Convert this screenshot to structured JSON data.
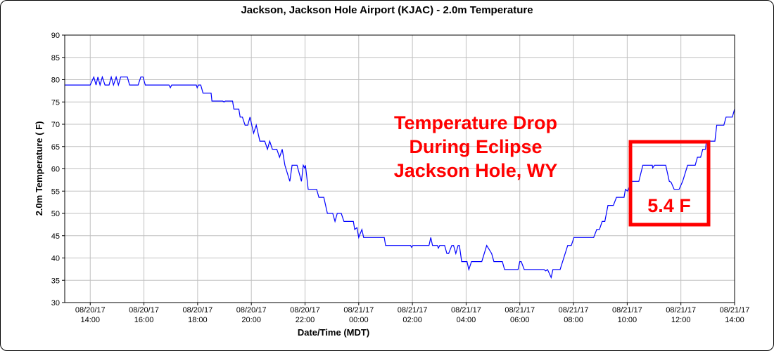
{
  "chart_data": {
    "type": "line",
    "title": "Jackson, Jackson Hole Airport (KJAC) - 2.0m Temperature",
    "xlabel": "Date/Time (MDT)",
    "ylabel": "2.0m Temperature ( F)",
    "ylim": [
      30,
      90
    ],
    "yticks": [
      30,
      35,
      40,
      45,
      50,
      55,
      60,
      65,
      70,
      75,
      80,
      85,
      90
    ],
    "xlim": [
      "08/20/17 13:03",
      "08/21/17 14:00"
    ],
    "xticks": [
      {
        "date": "08/20/17",
        "time": "14:00"
      },
      {
        "date": "08/20/17",
        "time": "16:00"
      },
      {
        "date": "08/20/17",
        "time": "18:00"
      },
      {
        "date": "08/20/17",
        "time": "20:00"
      },
      {
        "date": "08/20/17",
        "time": "22:00"
      },
      {
        "date": "08/21/17",
        "time": "00:00"
      },
      {
        "date": "08/21/17",
        "time": "02:00"
      },
      {
        "date": "08/21/17",
        "time": "04:00"
      },
      {
        "date": "08/21/17",
        "time": "06:00"
      },
      {
        "date": "08/21/17",
        "time": "08:00"
      },
      {
        "date": "08/21/17",
        "time": "10:00"
      },
      {
        "date": "08/21/17",
        "time": "12:00"
      },
      {
        "date": "08/21/17",
        "time": "14:00"
      }
    ],
    "grid": true,
    "line_color": "#0000ff",
    "grid_color": "#c0c0c0",
    "annotation_color": "#ff0000",
    "annotations": {
      "lines": [
        "Temperature Drop",
        "During Eclipse",
        "Jackson Hole, WY"
      ],
      "box_label": "5.4 F"
    },
    "points": [
      [
        "08/20/17 13:03",
        78.8
      ],
      [
        "08/20/17 14:00",
        78.8
      ],
      [
        "08/20/17 14:08",
        80.6
      ],
      [
        "08/20/17 14:13",
        78.8
      ],
      [
        "08/20/17 14:17",
        80.6
      ],
      [
        "08/20/17 14:22",
        78.8
      ],
      [
        "08/20/17 14:27",
        80.6
      ],
      [
        "08/20/17 14:33",
        78.8
      ],
      [
        "08/20/17 14:42",
        78.8
      ],
      [
        "08/20/17 14:47",
        80.6
      ],
      [
        "08/20/17 14:52",
        78.8
      ],
      [
        "08/20/17 14:58",
        80.6
      ],
      [
        "08/20/17 15:03",
        78.8
      ],
      [
        "08/20/17 15:08",
        80.6
      ],
      [
        "08/20/17 15:23",
        80.6
      ],
      [
        "08/20/17 15:28",
        78.8
      ],
      [
        "08/20/17 15:47",
        78.8
      ],
      [
        "08/20/17 15:53",
        80.6
      ],
      [
        "08/20/17 15:58",
        80.6
      ],
      [
        "08/20/17 16:03",
        78.8
      ],
      [
        "08/20/17 16:56",
        78.8
      ],
      [
        "08/20/17 16:59",
        78.2
      ],
      [
        "08/20/17 17:02",
        78.8
      ],
      [
        "08/20/17 17:57",
        78.8
      ],
      [
        "08/20/17 17:59",
        78.2
      ],
      [
        "08/20/17 18:02",
        78.8
      ],
      [
        "08/20/17 18:07",
        78.8
      ],
      [
        "08/20/17 18:12",
        77.0
      ],
      [
        "08/20/17 18:30",
        77.0
      ],
      [
        "08/20/17 18:32",
        75.2
      ],
      [
        "08/20/17 18:56",
        75.2
      ],
      [
        "08/20/17 18:59",
        75.0
      ],
      [
        "08/20/17 19:02",
        75.2
      ],
      [
        "08/20/17 19:18",
        75.2
      ],
      [
        "08/20/17 19:21",
        73.4
      ],
      [
        "08/20/17 19:32",
        73.4
      ],
      [
        "08/20/17 19:35",
        71.6
      ],
      [
        "08/20/17 19:40",
        71.6
      ],
      [
        "08/20/17 19:46",
        69.8
      ],
      [
        "08/20/17 19:52",
        69.8
      ],
      [
        "08/20/17 19:57",
        71.6
      ],
      [
        "08/20/17 20:05",
        68.0
      ],
      [
        "08/20/17 20:11",
        69.8
      ],
      [
        "08/20/17 20:19",
        66.2
      ],
      [
        "08/20/17 20:30",
        66.2
      ],
      [
        "08/20/17 20:36",
        64.4
      ],
      [
        "08/20/17 20:41",
        66.2
      ],
      [
        "08/20/17 20:47",
        64.4
      ],
      [
        "08/20/17 20:57",
        64.4
      ],
      [
        "08/20/17 21:03",
        62.6
      ],
      [
        "08/20/17 21:09",
        64.4
      ],
      [
        "08/20/17 21:15",
        60.8
      ],
      [
        "08/20/17 21:26",
        57.2
      ],
      [
        "08/20/17 21:31",
        60.8
      ],
      [
        "08/20/17 21:42",
        60.8
      ],
      [
        "08/20/17 21:52",
        57.2
      ],
      [
        "08/20/17 21:56",
        60.8
      ],
      [
        "08/20/17 21:59",
        60.2
      ],
      [
        "08/20/17 22:01",
        60.8
      ],
      [
        "08/20/17 22:07",
        55.4
      ],
      [
        "08/20/17 22:26",
        55.4
      ],
      [
        "08/20/17 22:31",
        53.6
      ],
      [
        "08/20/17 22:42",
        53.6
      ],
      [
        "08/20/17 22:50",
        50.0
      ],
      [
        "08/20/17 23:02",
        50.0
      ],
      [
        "08/20/17 23:07",
        48.2
      ],
      [
        "08/20/17 23:12",
        50.0
      ],
      [
        "08/20/17 23:21",
        50.0
      ],
      [
        "08/20/17 23:27",
        48.2
      ],
      [
        "08/20/17 23:48",
        48.2
      ],
      [
        "08/20/17 23:51",
        46.4
      ],
      [
        "08/20/17 23:56",
        46.8
      ],
      [
        "08/21/17 00:00",
        44.6
      ],
      [
        "08/21/17 00:07",
        46.4
      ],
      [
        "08/21/17 00:11",
        44.6
      ],
      [
        "08/21/17 00:22",
        44.6
      ],
      [
        "08/21/17 00:57",
        44.6
      ],
      [
        "08/21/17 01:00",
        42.8
      ],
      [
        "08/21/17 01:56",
        42.8
      ],
      [
        "08/21/17 01:58",
        42.4
      ],
      [
        "08/21/17 02:01",
        42.8
      ],
      [
        "08/21/17 02:37",
        42.8
      ],
      [
        "08/21/17 02:41",
        44.6
      ],
      [
        "08/21/17 02:45",
        42.8
      ],
      [
        "08/21/17 02:56",
        42.8
      ],
      [
        "08/21/17 02:58",
        42.2
      ],
      [
        "08/21/17 03:01",
        42.8
      ],
      [
        "08/21/17 03:12",
        42.8
      ],
      [
        "08/21/17 03:17",
        41.0
      ],
      [
        "08/21/17 03:21",
        41.0
      ],
      [
        "08/21/17 03:28",
        42.8
      ],
      [
        "08/21/17 03:32",
        42.8
      ],
      [
        "08/21/17 03:37",
        41.0
      ],
      [
        "08/21/17 03:42",
        42.8
      ],
      [
        "08/21/17 03:45",
        42.8
      ],
      [
        "08/21/17 03:50",
        39.2
      ],
      [
        "08/21/17 04:02",
        39.2
      ],
      [
        "08/21/17 04:06",
        37.4
      ],
      [
        "08/21/17 04:12",
        39.2
      ],
      [
        "08/21/17 04:35",
        39.2
      ],
      [
        "08/21/17 04:46",
        42.8
      ],
      [
        "08/21/17 04:57",
        41.0
      ],
      [
        "08/21/17 05:02",
        39.2
      ],
      [
        "08/21/17 05:21",
        39.2
      ],
      [
        "08/21/17 05:26",
        37.4
      ],
      [
        "08/21/17 05:56",
        37.4
      ],
      [
        "08/21/17 06:00",
        39.2
      ],
      [
        "08/21/17 06:03",
        39.2
      ],
      [
        "08/21/17 06:10",
        37.4
      ],
      [
        "08/21/17 06:54",
        37.4
      ],
      [
        "08/21/17 06:58",
        37.1
      ],
      [
        "08/21/17 07:02",
        37.4
      ],
      [
        "08/21/17 07:10",
        35.6
      ],
      [
        "08/21/17 07:14",
        37.4
      ],
      [
        "08/21/17 07:30",
        37.4
      ],
      [
        "08/21/17 07:47",
        42.8
      ],
      [
        "08/21/17 07:55",
        42.8
      ],
      [
        "08/21/17 08:01",
        44.6
      ],
      [
        "08/21/17 08:45",
        44.6
      ],
      [
        "08/21/17 08:52",
        46.4
      ],
      [
        "08/21/17 08:58",
        46.4
      ],
      [
        "08/21/17 09:04",
        48.2
      ],
      [
        "08/21/17 09:10",
        48.2
      ],
      [
        "08/21/17 09:17",
        51.8
      ],
      [
        "08/21/17 09:29",
        51.8
      ],
      [
        "08/21/17 09:36",
        53.6
      ],
      [
        "08/21/17 09:53",
        53.6
      ],
      [
        "08/21/17 09:56",
        55.4
      ],
      [
        "08/21/17 10:01",
        55.0
      ],
      [
        "08/21/17 10:09",
        57.2
      ],
      [
        "08/21/17 10:26",
        57.2
      ],
      [
        "08/21/17 10:35",
        60.8
      ],
      [
        "08/21/17 10:56",
        60.8
      ],
      [
        "08/21/17 10:57",
        60.2
      ],
      [
        "08/21/17 11:01",
        60.8
      ],
      [
        "08/21/17 11:26",
        60.8
      ],
      [
        "08/21/17 11:34",
        57.2
      ],
      [
        "08/21/17 11:38",
        57.0
      ],
      [
        "08/21/17 11:45",
        55.4
      ],
      [
        "08/21/17 11:56",
        55.4
      ],
      [
        "08/21/17 12:04",
        57.2
      ],
      [
        "08/21/17 12:15",
        60.8
      ],
      [
        "08/21/17 12:32",
        60.8
      ],
      [
        "08/21/17 12:37",
        62.6
      ],
      [
        "08/21/17 12:44",
        62.6
      ],
      [
        "08/21/17 12:49",
        64.4
      ],
      [
        "08/21/17 12:55",
        64.4
      ],
      [
        "08/21/17 12:57",
        66.2
      ],
      [
        "08/21/17 13:16",
        66.2
      ],
      [
        "08/21/17 13:20",
        69.8
      ],
      [
        "08/21/17 13:36",
        69.8
      ],
      [
        "08/21/17 13:41",
        71.6
      ],
      [
        "08/21/17 13:55",
        71.6
      ],
      [
        "08/21/17 14:00",
        73.4
      ]
    ]
  }
}
